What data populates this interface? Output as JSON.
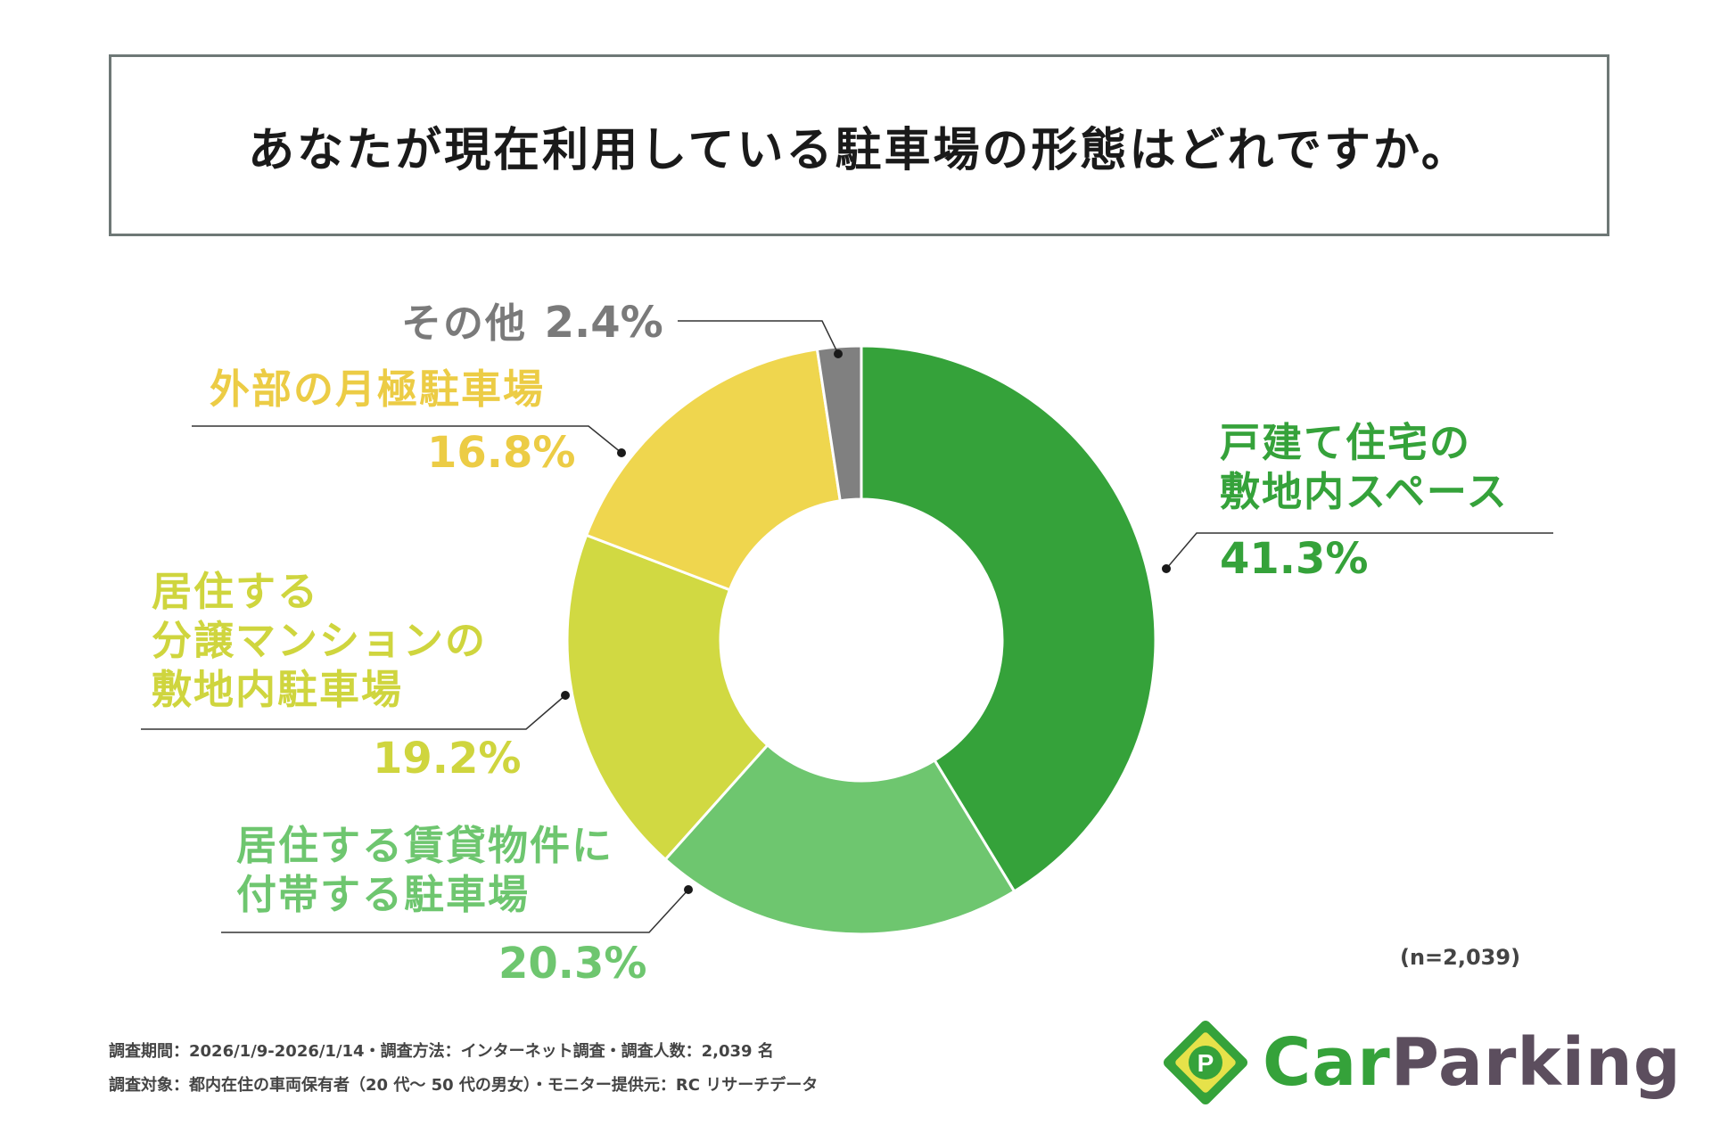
{
  "title": "あなたが現在利用している駐車場の形態はどれですか。",
  "sample": "(n=2,039)",
  "footnotes": [
    "調査期間：2026/1/9-2026/1/14・調査方法：インターネット調査・調査人数：2,039 名",
    "調査対象：都内在住の車両保有者（20 代～ 50 代の男女）・モニター提供元：RC リサーチデータ"
  ],
  "logo": {
    "icon": "p-parking-diamond-icon",
    "text_car": "Car",
    "text_parking": "Parking",
    "color_car": "#35a23a",
    "color_parking": "#5c4e5e"
  },
  "chart_data": {
    "type": "pie",
    "donut": true,
    "title": "あなたが現在利用している駐車場の形態はどれですか。",
    "unit": "%",
    "slices": [
      {
        "label": "戸建て住宅の敷地内スペース",
        "label_lines": [
          "戸建て住宅の",
          "敷地内スペース"
        ],
        "value": 41.3,
        "value_text": "41.3%",
        "color": "#35a23a"
      },
      {
        "label": "居住する賃貸物件に付帯する駐車場",
        "label_lines": [
          "居住する賃貸物件に",
          "付帯する駐車場"
        ],
        "value": 20.3,
        "value_text": "20.3%",
        "color": "#6ec66f"
      },
      {
        "label": "居住する分譲マンションの敷地内駐車場",
        "label_lines": [
          "居住する",
          "分譲マンションの",
          "敷地内駐車場"
        ],
        "value": 19.2,
        "value_text": "19.2%",
        "color": "#d1d942"
      },
      {
        "label": "外部の月極駐車場",
        "label_lines": [
          "外部の月極駐車場"
        ],
        "value": 16.8,
        "value_text": "16.8%",
        "color": "#efd64e"
      },
      {
        "label": "その他",
        "label_lines": [
          "その他"
        ],
        "value": 2.4,
        "value_text": "2.4%",
        "color": "#808080"
      }
    ]
  }
}
